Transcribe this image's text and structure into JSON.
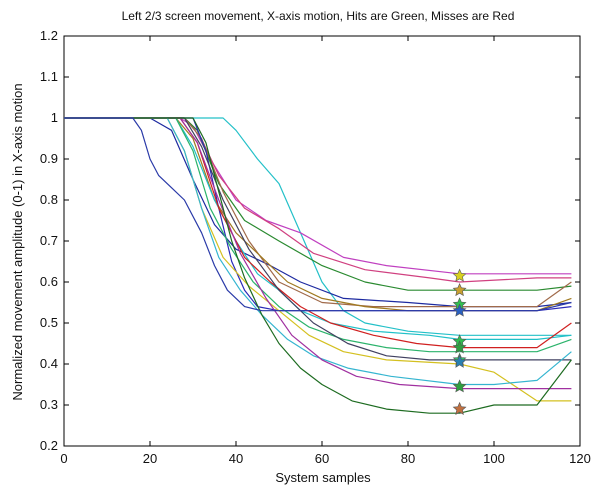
{
  "chart_data": {
    "type": "line",
    "title": "Left 2/3 screen movement, X-axis motion, Hits are Green, Misses are Red",
    "xlabel": "System samples",
    "ylabel": "Normalized movement amplitude (0-1) in X-axis motion",
    "xlim": [
      0,
      120
    ],
    "ylim": [
      0.2,
      1.2
    ],
    "xticks": [
      "0",
      "20",
      "40",
      "60",
      "80",
      "100",
      "120"
    ],
    "yticks": [
      "0.2",
      "0.3",
      "0.4",
      "0.5",
      "0.6",
      "0.7",
      "0.8",
      "0.9",
      "1",
      "1.1",
      "1.2"
    ],
    "grid": false,
    "series": [
      {
        "color": "#23c0c8",
        "points": [
          [
            0,
            1
          ],
          [
            37,
            1
          ],
          [
            40,
            0.97
          ],
          [
            45,
            0.9
          ],
          [
            50,
            0.84
          ],
          [
            55,
            0.72
          ],
          [
            60,
            0.6
          ],
          [
            65,
            0.53
          ],
          [
            70,
            0.5
          ],
          [
            80,
            0.48
          ],
          [
            92,
            0.47
          ],
          [
            110,
            0.47
          ],
          [
            118,
            0.47
          ]
        ]
      },
      {
        "color": "#c040c0",
        "points": [
          [
            0,
            1
          ],
          [
            27,
            1
          ],
          [
            30,
            0.98
          ],
          [
            34,
            0.9
          ],
          [
            40,
            0.8
          ],
          [
            47,
            0.75
          ],
          [
            55,
            0.72
          ],
          [
            65,
            0.66
          ],
          [
            75,
            0.64
          ],
          [
            92,
            0.62
          ],
          [
            110,
            0.62
          ],
          [
            118,
            0.62
          ]
        ]
      },
      {
        "color": "#d04080",
        "points": [
          [
            0,
            1
          ],
          [
            28,
            1
          ],
          [
            31,
            0.97
          ],
          [
            36,
            0.86
          ],
          [
            42,
            0.78
          ],
          [
            50,
            0.73
          ],
          [
            58,
            0.67
          ],
          [
            70,
            0.63
          ],
          [
            85,
            0.61
          ],
          [
            92,
            0.6
          ],
          [
            110,
            0.61
          ],
          [
            118,
            0.61
          ]
        ]
      },
      {
        "color": "#2a8a30",
        "points": [
          [
            0,
            1
          ],
          [
            28,
            1
          ],
          [
            31,
            0.97
          ],
          [
            36,
            0.84
          ],
          [
            42,
            0.75
          ],
          [
            50,
            0.7
          ],
          [
            60,
            0.64
          ],
          [
            70,
            0.6
          ],
          [
            80,
            0.58
          ],
          [
            92,
            0.58
          ],
          [
            110,
            0.58
          ],
          [
            118,
            0.59
          ]
        ]
      },
      {
        "color": "#1d2aa0",
        "points": [
          [
            0,
            1
          ],
          [
            20,
            1
          ],
          [
            25,
            0.97
          ],
          [
            30,
            0.85
          ],
          [
            35,
            0.74
          ],
          [
            40,
            0.68
          ],
          [
            48,
            0.64
          ],
          [
            55,
            0.6
          ],
          [
            65,
            0.56
          ],
          [
            80,
            0.55
          ],
          [
            92,
            0.54
          ],
          [
            110,
            0.54
          ],
          [
            118,
            0.55
          ]
        ]
      },
      {
        "color": "#a06a4a",
        "points": [
          [
            0,
            1
          ],
          [
            28,
            1
          ],
          [
            32,
            0.95
          ],
          [
            37,
            0.82
          ],
          [
            43,
            0.7
          ],
          [
            50,
            0.6
          ],
          [
            60,
            0.55
          ],
          [
            72,
            0.54
          ],
          [
            85,
            0.54
          ],
          [
            92,
            0.54
          ],
          [
            110,
            0.54
          ],
          [
            118,
            0.6
          ]
        ]
      },
      {
        "color": "#a07a20",
        "points": [
          [
            0,
            1
          ],
          [
            26,
            1
          ],
          [
            30,
            0.95
          ],
          [
            35,
            0.8
          ],
          [
            40,
            0.72
          ],
          [
            46,
            0.66
          ],
          [
            52,
            0.6
          ],
          [
            60,
            0.56
          ],
          [
            70,
            0.54
          ],
          [
            80,
            0.53
          ],
          [
            92,
            0.53
          ],
          [
            110,
            0.53
          ],
          [
            118,
            0.56
          ]
        ]
      },
      {
        "color": "#2a2ab8",
        "points": [
          [
            0,
            1
          ],
          [
            30,
            1
          ],
          [
            33,
            0.92
          ],
          [
            36,
            0.78
          ],
          [
            39,
            0.65
          ],
          [
            42,
            0.58
          ],
          [
            45,
            0.54
          ],
          [
            50,
            0.53
          ],
          [
            70,
            0.53
          ],
          [
            92,
            0.53
          ],
          [
            110,
            0.53
          ],
          [
            118,
            0.54
          ]
        ]
      },
      {
        "color": "#20c0c8",
        "points": [
          [
            0,
            1
          ],
          [
            26,
            1
          ],
          [
            30,
            0.93
          ],
          [
            35,
            0.8
          ],
          [
            40,
            0.7
          ],
          [
            45,
            0.62
          ],
          [
            50,
            0.58
          ],
          [
            55,
            0.53
          ],
          [
            62,
            0.5
          ],
          [
            72,
            0.48
          ],
          [
            85,
            0.47
          ],
          [
            92,
            0.46
          ],
          [
            110,
            0.46
          ],
          [
            118,
            0.47
          ]
        ]
      },
      {
        "color": "#d02020",
        "points": [
          [
            0,
            1
          ],
          [
            27,
            1
          ],
          [
            31,
            0.94
          ],
          [
            36,
            0.78
          ],
          [
            42,
            0.66
          ],
          [
            48,
            0.6
          ],
          [
            55,
            0.54
          ],
          [
            62,
            0.5
          ],
          [
            72,
            0.47
          ],
          [
            82,
            0.45
          ],
          [
            92,
            0.44
          ],
          [
            110,
            0.44
          ],
          [
            118,
            0.5
          ]
        ]
      },
      {
        "color": "#2bb36b",
        "points": [
          [
            0,
            1
          ],
          [
            26,
            1
          ],
          [
            30,
            0.92
          ],
          [
            34,
            0.78
          ],
          [
            39,
            0.68
          ],
          [
            44,
            0.6
          ],
          [
            50,
            0.54
          ],
          [
            57,
            0.49
          ],
          [
            65,
            0.46
          ],
          [
            75,
            0.44
          ],
          [
            85,
            0.43
          ],
          [
            92,
            0.43
          ],
          [
            110,
            0.43
          ],
          [
            118,
            0.46
          ]
        ]
      },
      {
        "color": "#d4c020",
        "points": [
          [
            0,
            1
          ],
          [
            24,
            1
          ],
          [
            28,
            0.92
          ],
          [
            32,
            0.78
          ],
          [
            37,
            0.66
          ],
          [
            43,
            0.59
          ],
          [
            50,
            0.53
          ],
          [
            57,
            0.47
          ],
          [
            65,
            0.43
          ],
          [
            75,
            0.41
          ],
          [
            92,
            0.4
          ],
          [
            100,
            0.38
          ],
          [
            110,
            0.31
          ],
          [
            118,
            0.31
          ]
        ]
      },
      {
        "color": "#404060",
        "points": [
          [
            0,
            1
          ],
          [
            28,
            1
          ],
          [
            32,
            0.93
          ],
          [
            37,
            0.8
          ],
          [
            43,
            0.68
          ],
          [
            50,
            0.58
          ],
          [
            58,
            0.5
          ],
          [
            66,
            0.45
          ],
          [
            75,
            0.42
          ],
          [
            85,
            0.41
          ],
          [
            92,
            0.41
          ],
          [
            110,
            0.41
          ],
          [
            118,
            0.41
          ]
        ]
      },
      {
        "color": "#35b5d0",
        "points": [
          [
            0,
            1
          ],
          [
            24,
            1
          ],
          [
            28,
            0.92
          ],
          [
            32,
            0.78
          ],
          [
            36,
            0.66
          ],
          [
            41,
            0.58
          ],
          [
            46,
            0.52
          ],
          [
            52,
            0.46
          ],
          [
            58,
            0.42
          ],
          [
            66,
            0.39
          ],
          [
            76,
            0.37
          ],
          [
            92,
            0.35
          ],
          [
            100,
            0.35
          ],
          [
            110,
            0.36
          ],
          [
            118,
            0.43
          ]
        ]
      },
      {
        "color": "#a030a0",
        "points": [
          [
            0,
            1
          ],
          [
            27,
            1
          ],
          [
            31,
            0.94
          ],
          [
            36,
            0.8
          ],
          [
            41,
            0.67
          ],
          [
            47,
            0.56
          ],
          [
            53,
            0.47
          ],
          [
            60,
            0.41
          ],
          [
            68,
            0.37
          ],
          [
            78,
            0.35
          ],
          [
            92,
            0.34
          ],
          [
            110,
            0.34
          ],
          [
            118,
            0.34
          ]
        ]
      },
      {
        "color": "#1d6b20",
        "points": [
          [
            0,
            1
          ],
          [
            30,
            1
          ],
          [
            33,
            0.94
          ],
          [
            36,
            0.82
          ],
          [
            39,
            0.7
          ],
          [
            42,
            0.61
          ],
          [
            46,
            0.52
          ],
          [
            50,
            0.45
          ],
          [
            55,
            0.39
          ],
          [
            60,
            0.35
          ],
          [
            67,
            0.31
          ],
          [
            75,
            0.29
          ],
          [
            85,
            0.28
          ],
          [
            92,
            0.28
          ],
          [
            100,
            0.3
          ],
          [
            110,
            0.3
          ],
          [
            118,
            0.41
          ]
        ]
      },
      {
        "color": "#2a3aa8",
        "points": [
          [
            0,
            1
          ],
          [
            16,
            1
          ],
          [
            18,
            0.97
          ],
          [
            20,
            0.9
          ],
          [
            22,
            0.86
          ],
          [
            25,
            0.83
          ],
          [
            28,
            0.8
          ],
          [
            32,
            0.72
          ],
          [
            35,
            0.64
          ],
          [
            38,
            0.58
          ],
          [
            42,
            0.54
          ],
          [
            46,
            0.53
          ],
          [
            60,
            0.53
          ],
          [
            80,
            0.53
          ],
          [
            92,
            0.53
          ],
          [
            110,
            0.53
          ],
          [
            118,
            0.55
          ]
        ]
      }
    ],
    "markers": [
      {
        "x": 92,
        "y": 0.615,
        "color": "#d8d020"
      },
      {
        "x": 92,
        "y": 0.58,
        "color": "#c8a030"
      },
      {
        "x": 92,
        "y": 0.545,
        "color": "#30c050"
      },
      {
        "x": 92,
        "y": 0.53,
        "color": "#2a60c0"
      },
      {
        "x": 92,
        "y": 0.455,
        "color": "#30c050"
      },
      {
        "x": 92,
        "y": 0.44,
        "color": "#30a040"
      },
      {
        "x": 92,
        "y": 0.41,
        "color": "#30c070"
      },
      {
        "x": 92,
        "y": 0.405,
        "color": "#2a80b0"
      },
      {
        "x": 92,
        "y": 0.345,
        "color": "#30a040"
      },
      {
        "x": 92,
        "y": 0.29,
        "color": "#c07040"
      }
    ]
  }
}
